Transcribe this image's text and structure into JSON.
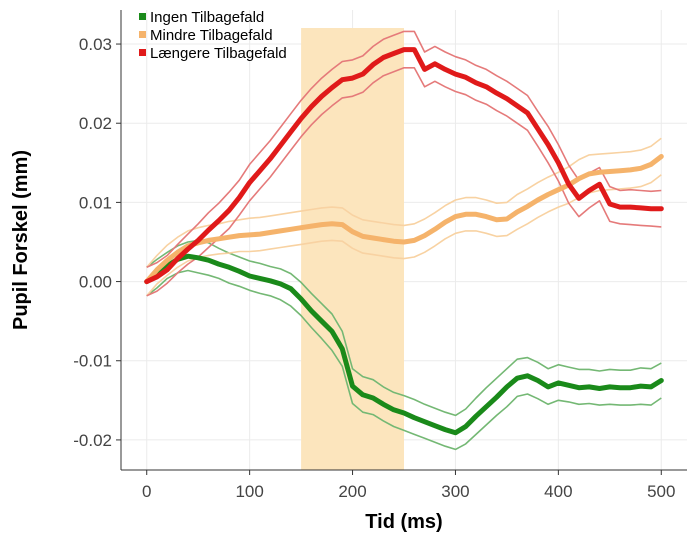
{
  "chart_data": {
    "type": "line",
    "title": "",
    "xlabel": "Tid (ms)",
    "ylabel": "Pupil Forskel (mm)",
    "xlim": [
      -25,
      525
    ],
    "ylim": [
      -0.0238,
      0.0343
    ],
    "x_ticks": [
      0,
      100,
      200,
      300,
      400,
      500
    ],
    "x_tick_labels": [
      "0",
      "100",
      "200",
      "300",
      "400",
      "500"
    ],
    "y_ticks": [
      -0.02,
      -0.01,
      0.0,
      0.01,
      0.02,
      0.03
    ],
    "y_tick_labels": [
      "-0.02",
      "-0.01",
      "0.00",
      "0.01",
      "0.02",
      "0.03"
    ],
    "grid": true,
    "legend_position": "top-left",
    "shaded_region": {
      "x_start": 150,
      "x_end": 250,
      "color": "#fce5bd"
    },
    "series": [
      {
        "name": "Ingen Tilbagefald",
        "color": "#1a8a1a",
        "band_color": "#74b874",
        "x": [
          0,
          10,
          20,
          30,
          40,
          50,
          60,
          70,
          80,
          90,
          100,
          110,
          120,
          130,
          140,
          150,
          160,
          170,
          180,
          190,
          200,
          210,
          220,
          230,
          240,
          250,
          260,
          270,
          280,
          290,
          300,
          310,
          320,
          330,
          340,
          350,
          360,
          370,
          380,
          390,
          400,
          410,
          420,
          430,
          440,
          450,
          460,
          470,
          480,
          490,
          500
        ],
        "mean": [
          0.0,
          0.001,
          0.002,
          0.0028,
          0.0032,
          0.003,
          0.0027,
          0.0022,
          0.0018,
          0.0013,
          0.0007,
          0.0004,
          0.0001,
          -0.0003,
          -0.0009,
          -0.0022,
          -0.0037,
          -0.005,
          -0.0063,
          -0.0085,
          -0.0132,
          -0.0143,
          -0.0147,
          -0.0155,
          -0.0162,
          -0.0166,
          -0.0172,
          -0.0177,
          -0.0182,
          -0.0187,
          -0.0191,
          -0.0183,
          -0.017,
          -0.0158,
          -0.0146,
          -0.0133,
          -0.0122,
          -0.0119,
          -0.0125,
          -0.0133,
          -0.0128,
          -0.0131,
          -0.0134,
          -0.0133,
          -0.0135,
          -0.0133,
          -0.0134,
          -0.0134,
          -0.0132,
          -0.0133,
          -0.0125
        ],
        "lower": [
          -0.0018,
          -0.0008,
          0.0004,
          0.0011,
          0.0014,
          0.0011,
          0.0008,
          0.0004,
          -0.0002,
          -0.0006,
          -0.0011,
          -0.0015,
          -0.0018,
          -0.0023,
          -0.0031,
          -0.0043,
          -0.0058,
          -0.0072,
          -0.0087,
          -0.0107,
          -0.0154,
          -0.0165,
          -0.0168,
          -0.0176,
          -0.0183,
          -0.0188,
          -0.0193,
          -0.0198,
          -0.0203,
          -0.0208,
          -0.0212,
          -0.0205,
          -0.0193,
          -0.0181,
          -0.0169,
          -0.0158,
          -0.0145,
          -0.0142,
          -0.0148,
          -0.0155,
          -0.015,
          -0.0152,
          -0.0155,
          -0.0154,
          -0.0156,
          -0.0155,
          -0.0156,
          -0.0156,
          -0.0155,
          -0.0156,
          -0.0147
        ],
        "upper": [
          0.0018,
          0.0028,
          0.0037,
          0.0045,
          0.005,
          0.0052,
          0.0049,
          0.0042,
          0.0036,
          0.0031,
          0.0026,
          0.0023,
          0.0019,
          0.0016,
          0.001,
          -0.0001,
          -0.0015,
          -0.0028,
          -0.0041,
          -0.0063,
          -0.011,
          -0.012,
          -0.0124,
          -0.0133,
          -0.014,
          -0.0144,
          -0.0149,
          -0.0155,
          -0.016,
          -0.0165,
          -0.0169,
          -0.0161,
          -0.0147,
          -0.0134,
          -0.0122,
          -0.011,
          -0.0098,
          -0.0096,
          -0.0102,
          -0.011,
          -0.0105,
          -0.0108,
          -0.0111,
          -0.0111,
          -0.0113,
          -0.0111,
          -0.0112,
          -0.0112,
          -0.0109,
          -0.011,
          -0.0103
        ]
      },
      {
        "name": "Mindre Tilbagefald",
        "color": "#f5b36b",
        "band_color": "#f8d2a2",
        "x": [
          0,
          10,
          20,
          30,
          40,
          50,
          60,
          70,
          80,
          90,
          100,
          110,
          120,
          130,
          140,
          150,
          160,
          170,
          180,
          190,
          200,
          210,
          220,
          230,
          240,
          250,
          260,
          270,
          280,
          290,
          300,
          310,
          320,
          330,
          340,
          350,
          360,
          370,
          380,
          390,
          400,
          410,
          420,
          430,
          440,
          450,
          460,
          470,
          480,
          490,
          500
        ],
        "mean": [
          0.0,
          0.0015,
          0.0027,
          0.0037,
          0.0045,
          0.0049,
          0.0052,
          0.0054,
          0.0056,
          0.0058,
          0.0059,
          0.006,
          0.0062,
          0.0064,
          0.0066,
          0.0068,
          0.007,
          0.0072,
          0.0073,
          0.0072,
          0.0063,
          0.0057,
          0.0055,
          0.0053,
          0.0051,
          0.005,
          0.0052,
          0.0058,
          0.0066,
          0.0075,
          0.0082,
          0.0085,
          0.0085,
          0.0082,
          0.0078,
          0.0079,
          0.0088,
          0.0095,
          0.0103,
          0.011,
          0.0116,
          0.0122,
          0.013,
          0.0136,
          0.0138,
          0.0139,
          0.014,
          0.0141,
          0.0143,
          0.0148,
          0.0158
        ],
        "lower": [
          -0.0018,
          -0.0003,
          0.0008,
          0.0018,
          0.0026,
          0.003,
          0.0033,
          0.0035,
          0.0036,
          0.0038,
          0.0038,
          0.0039,
          0.0041,
          0.0043,
          0.0045,
          0.0047,
          0.0049,
          0.0051,
          0.0052,
          0.0051,
          0.0042,
          0.0036,
          0.0034,
          0.0032,
          0.003,
          0.0029,
          0.0031,
          0.0037,
          0.0045,
          0.0054,
          0.0061,
          0.0064,
          0.0064,
          0.0061,
          0.0057,
          0.0058,
          0.0066,
          0.0073,
          0.0081,
          0.0088,
          0.0094,
          0.0099,
          0.0106,
          0.0112,
          0.0115,
          0.0116,
          0.0117,
          0.0118,
          0.012,
          0.0125,
          0.0135
        ],
        "upper": [
          0.0018,
          0.0033,
          0.0046,
          0.0056,
          0.0064,
          0.0068,
          0.0071,
          0.0073,
          0.0076,
          0.0078,
          0.008,
          0.0081,
          0.0083,
          0.0085,
          0.0087,
          0.0089,
          0.0091,
          0.0093,
          0.0094,
          0.0093,
          0.0084,
          0.0078,
          0.0076,
          0.0074,
          0.0072,
          0.0071,
          0.0073,
          0.0079,
          0.0087,
          0.0096,
          0.0103,
          0.0106,
          0.0106,
          0.0103,
          0.0099,
          0.01,
          0.011,
          0.0117,
          0.0125,
          0.0132,
          0.0138,
          0.0145,
          0.0154,
          0.016,
          0.0161,
          0.0162,
          0.0163,
          0.0164,
          0.0166,
          0.0171,
          0.0181
        ]
      },
      {
        "name": "Længere Tilbagefald",
        "color": "#e01a1a",
        "band_color": "#e57a7a",
        "x": [
          0,
          10,
          20,
          30,
          40,
          50,
          60,
          70,
          80,
          90,
          100,
          110,
          120,
          130,
          140,
          150,
          160,
          170,
          180,
          190,
          200,
          210,
          220,
          230,
          240,
          250,
          260,
          270,
          280,
          290,
          300,
          310,
          320,
          330,
          340,
          350,
          360,
          370,
          380,
          390,
          400,
          410,
          420,
          430,
          440,
          450,
          460,
          470,
          480,
          490,
          500
        ],
        "mean": [
          0.0,
          0.0006,
          0.0015,
          0.0029,
          0.0041,
          0.0052,
          0.0065,
          0.0077,
          0.009,
          0.0106,
          0.0125,
          0.014,
          0.0155,
          0.0172,
          0.0189,
          0.0206,
          0.0221,
          0.0234,
          0.0245,
          0.0255,
          0.0257,
          0.0262,
          0.0274,
          0.0283,
          0.0288,
          0.0293,
          0.0293,
          0.0268,
          0.0275,
          0.0268,
          0.0262,
          0.0258,
          0.0251,
          0.0246,
          0.0238,
          0.0231,
          0.0222,
          0.0213,
          0.0193,
          0.0173,
          0.015,
          0.0123,
          0.0105,
          0.0115,
          0.0123,
          0.0098,
          0.0094,
          0.0094,
          0.0093,
          0.0092,
          0.0092
        ],
        "lower": [
          -0.0018,
          -0.0012,
          -0.0002,
          0.0011,
          0.0022,
          0.0031,
          0.0043,
          0.0055,
          0.0067,
          0.0084,
          0.0102,
          0.0117,
          0.0132,
          0.0149,
          0.0166,
          0.0183,
          0.0198,
          0.0211,
          0.0222,
          0.0232,
          0.0234,
          0.0239,
          0.0251,
          0.026,
          0.0265,
          0.027,
          0.027,
          0.0246,
          0.0253,
          0.0246,
          0.024,
          0.0236,
          0.0229,
          0.0224,
          0.0216,
          0.0209,
          0.02,
          0.0191,
          0.0171,
          0.015,
          0.0127,
          0.0099,
          0.0082,
          0.0093,
          0.0102,
          0.0076,
          0.0073,
          0.0072,
          0.0071,
          0.007,
          0.0069
        ],
        "upper": [
          0.0018,
          0.0024,
          0.0033,
          0.0047,
          0.006,
          0.0073,
          0.0087,
          0.0099,
          0.0113,
          0.0128,
          0.0148,
          0.0163,
          0.0178,
          0.0195,
          0.0212,
          0.0229,
          0.0244,
          0.0257,
          0.0268,
          0.0278,
          0.028,
          0.0285,
          0.0297,
          0.0306,
          0.0311,
          0.0316,
          0.0316,
          0.029,
          0.0297,
          0.029,
          0.0284,
          0.028,
          0.0273,
          0.0268,
          0.026,
          0.0253,
          0.0244,
          0.0235,
          0.0215,
          0.0196,
          0.0173,
          0.0147,
          0.0128,
          0.0137,
          0.0144,
          0.012,
          0.0115,
          0.0116,
          0.0115,
          0.0114,
          0.0115
        ]
      }
    ]
  }
}
